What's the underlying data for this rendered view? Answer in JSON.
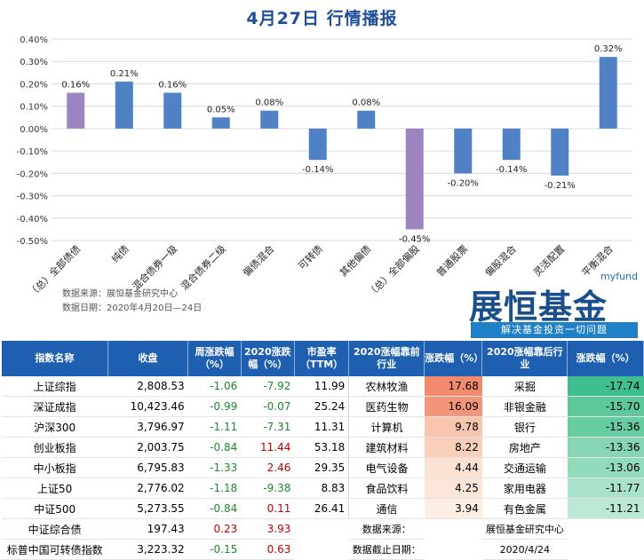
{
  "header": {
    "title": "4月27日  行情播报"
  },
  "chart_data": {
    "type": "bar",
    "categories": [
      "（总）全部债债",
      "纯债",
      "混合债券一级",
      "混合债券二级",
      "偏债混合",
      "可转债",
      "其他偏债",
      "（总）全部偏股",
      "普通股票",
      "偏股混合",
      "灵活配置",
      "平衡混合"
    ],
    "values": [
      0.16,
      0.21,
      0.16,
      0.05,
      0.08,
      -0.14,
      0.08,
      -0.45,
      -0.2,
      -0.14,
      -0.21,
      0.32
    ],
    "value_labels": [
      "0.16%",
      "0.21%",
      "0.16%",
      "0.05%",
      "0.08%",
      "-0.14%",
      "0.08%",
      "-0.45%",
      "-0.20%",
      "-0.14%",
      "-0.21%",
      "0.32%"
    ],
    "yticks": [
      "0.40%",
      "0.30%",
      "0.20%",
      "0.10%",
      "0.00%",
      "-0.10%",
      "-0.20%",
      "-0.30%",
      "-0.40%",
      "-0.50%"
    ],
    "ylim": [
      -0.5,
      0.4
    ],
    "colors": [
      "#9b84c0",
      "#4f81c4",
      "#4f81c4",
      "#4f81c4",
      "#4f81c4",
      "#4f81c4",
      "#4f81c4",
      "#9b84c0",
      "#4f81c4",
      "#4f81c4",
      "#4f81c4",
      "#4f81c4"
    ],
    "grid": true
  },
  "chart_source": {
    "source": "数据来源：展恒基金研究中心",
    "date": "数据日期：2020年4月20日—24日"
  },
  "logo": {
    "brand_en": "myfund",
    "brand_cn": "展恒基金",
    "slogan": "解决基金投资一切问题"
  },
  "table": {
    "headers": [
      "指数名称",
      "收盘",
      "周涨跌幅（%）",
      "2020涨跌幅（%）",
      "市盈率（TTM）",
      "2020涨幅靠前行业",
      "涨跌幅（%）",
      "2020涨幅靠后行业",
      "涨跌幅（%）"
    ],
    "rows": [
      [
        "上证综指",
        "2,808.53",
        "-1.06",
        "-7.92",
        "11.99",
        "农林牧渔",
        "17.68",
        "采掘",
        "-17.74"
      ],
      [
        "深证成指",
        "10,423.46",
        "-0.99",
        "-0.07",
        "25.24",
        "医药生物",
        "16.09",
        "非银金融",
        "-15.70"
      ],
      [
        "沪深300",
        "3,796.97",
        "-1.11",
        "-7.31",
        "11.31",
        "计算机",
        "9.78",
        "银行",
        "-15.36"
      ],
      [
        "创业板指",
        "2,003.75",
        "-0.84",
        "11.44",
        "53.18",
        "建筑材料",
        "8.22",
        "房地产",
        "-13.36"
      ],
      [
        "中小板指",
        "6,795.83",
        "-1.33",
        "2.46",
        "29.35",
        "电气设备",
        "4.44",
        "交通运输",
        "-13.06"
      ],
      [
        "上证50",
        "2,776.02",
        "-1.18",
        "-9.38",
        "8.83",
        "食品饮料",
        "4.25",
        "家用电器",
        "-11.77"
      ],
      [
        "中证500",
        "5,273.55",
        "-0.84",
        "0.11",
        "26.41",
        "通信",
        "3.94",
        "有色金属",
        "-11.21"
      ],
      [
        "中证综合债",
        "197.43",
        "0.23",
        "3.93"
      ],
      [
        "标普中国可转债指数",
        "3,223.32",
        "-0.15",
        "0.63"
      ]
    ],
    "up_colors": [
      "#f28b6e",
      "#f3957a",
      "#f8c6ae",
      "#f9cfba",
      "#fbe2d3",
      "#fce6d9",
      "#fdeee4"
    ],
    "down_colors": [
      "#3fbf8f",
      "#5cc89c",
      "#68cca3",
      "#86d6b5",
      "#93dbbd",
      "#aae3cb",
      "#bce9d6"
    ],
    "footer_source_label": "数据来源：",
    "footer_source_value": "展恒基金研究中心",
    "footer_date_label": "数据截止日期：",
    "footer_date_value": "2020/4/24"
  }
}
